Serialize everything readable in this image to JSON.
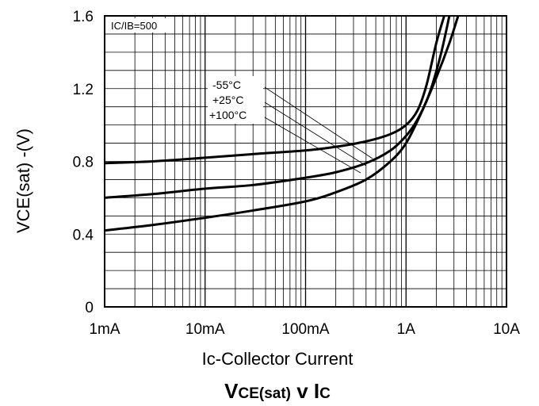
{
  "chart_data": {
    "type": "line",
    "title": {
      "main1": "V",
      "sub1": "CE(sat)",
      "mid": " v I",
      "sub2": "C"
    },
    "xlabel": "Ic-Collector Current",
    "ylabel": "VCE(sat) -(V)",
    "x_scale": "log",
    "xlim": [
      0.001,
      10
    ],
    "ylim": [
      0,
      1.6
    ],
    "x_ticks": [
      {
        "value": 0.001,
        "label": "1mA"
      },
      {
        "value": 0.01,
        "label": "10mA"
      },
      {
        "value": 0.1,
        "label": "100mA"
      },
      {
        "value": 1,
        "label": "1A"
      },
      {
        "value": 10,
        "label": "10A"
      }
    ],
    "y_ticks": [
      {
        "value": 0,
        "label": "0"
      },
      {
        "value": 0.4,
        "label": "0.4"
      },
      {
        "value": 0.8,
        "label": "0.8"
      },
      {
        "value": 1.2,
        "label": "1.2"
      },
      {
        "value": 1.6,
        "label": "1.6"
      }
    ],
    "grid": true,
    "condition_note": "IC/IB=500",
    "series": [
      {
        "name": "-55°C",
        "x": [
          0.001,
          0.003,
          0.01,
          0.03,
          0.1,
          0.2,
          0.4,
          0.7,
          1.0,
          1.3,
          1.6,
          2.0,
          2.4
        ],
        "y": [
          0.79,
          0.8,
          0.82,
          0.84,
          0.86,
          0.88,
          0.91,
          0.95,
          1.0,
          1.08,
          1.22,
          1.45,
          1.6
        ]
      },
      {
        "name": "+25°C",
        "x": [
          0.001,
          0.003,
          0.01,
          0.03,
          0.1,
          0.2,
          0.4,
          0.7,
          1.0,
          1.3,
          1.7,
          2.2,
          2.7
        ],
        "y": [
          0.6,
          0.62,
          0.65,
          0.67,
          0.71,
          0.74,
          0.79,
          0.86,
          0.94,
          1.03,
          1.17,
          1.38,
          1.6
        ]
      },
      {
        "name": "+100°C",
        "x": [
          0.001,
          0.003,
          0.01,
          0.03,
          0.1,
          0.2,
          0.4,
          0.7,
          1.0,
          1.4,
          2.0,
          2.7,
          3.3
        ],
        "y": [
          0.42,
          0.45,
          0.49,
          0.53,
          0.58,
          0.63,
          0.7,
          0.8,
          0.9,
          1.06,
          1.26,
          1.45,
          1.6
        ]
      }
    ],
    "legend": "leader lines to curves, upper-middle"
  }
}
